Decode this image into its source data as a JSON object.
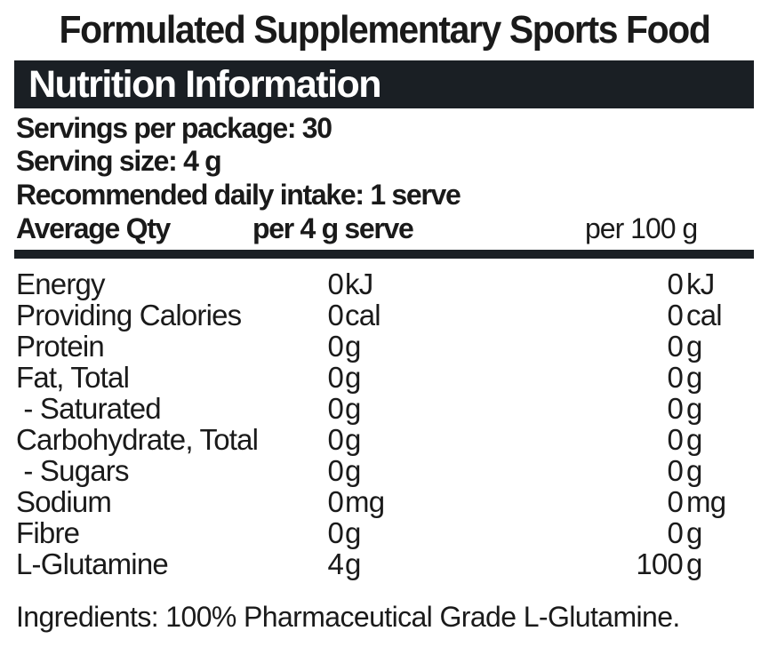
{
  "title": "Formulated Supplementary Sports Food",
  "panel": {
    "header": "Nutrition Information",
    "servings_per_package": "Servings per package: 30",
    "serving_size": "Serving size: 4 g",
    "recommended_daily_intake": "Recommended daily intake: 1 serve",
    "columns": {
      "average_qty": "Average Qty",
      "per_serve": "per 4 g serve",
      "per_100g": "per 100 g"
    },
    "rows": [
      {
        "name": "Energy",
        "serve_value": "0",
        "serve_unit": "kJ",
        "per100_value": "0",
        "per100_unit": "kJ"
      },
      {
        "name": "Providing Calories",
        "serve_value": "0",
        "serve_unit": "cal",
        "per100_value": "0",
        "per100_unit": "cal"
      },
      {
        "name": "Protein",
        "serve_value": "0",
        "serve_unit": "g",
        "per100_value": "0",
        "per100_unit": "g"
      },
      {
        "name": "Fat, Total",
        "serve_value": "0",
        "serve_unit": "g",
        "per100_value": "0",
        "per100_unit": "g"
      },
      {
        "name": " - Saturated",
        "serve_value": "0",
        "serve_unit": "g",
        "per100_value": "0",
        "per100_unit": "g"
      },
      {
        "name": "Carbohydrate, Total",
        "serve_value": "0",
        "serve_unit": "g",
        "per100_value": "0",
        "per100_unit": "g"
      },
      {
        "name": " - Sugars",
        "serve_value": "0",
        "serve_unit": "g",
        "per100_value": "0",
        "per100_unit": "g"
      },
      {
        "name": "Sodium",
        "serve_value": "0",
        "serve_unit": "mg",
        "per100_value": "0",
        "per100_unit": "mg"
      },
      {
        "name": "Fibre",
        "serve_value": "0",
        "serve_unit": "g",
        "per100_value": "0",
        "per100_unit": "g"
      },
      {
        "name": "L-Glutamine",
        "serve_value": "4",
        "serve_unit": "g",
        "per100_value": "100",
        "per100_unit": "g"
      }
    ]
  },
  "ingredients": "Ingredients: 100% Pharmaceutical Grade L-Glutamine.",
  "colors": {
    "header_background": "#1a1f24",
    "header_text": "#ffffff",
    "text": "#1a1a1a",
    "background": "#ffffff"
  }
}
